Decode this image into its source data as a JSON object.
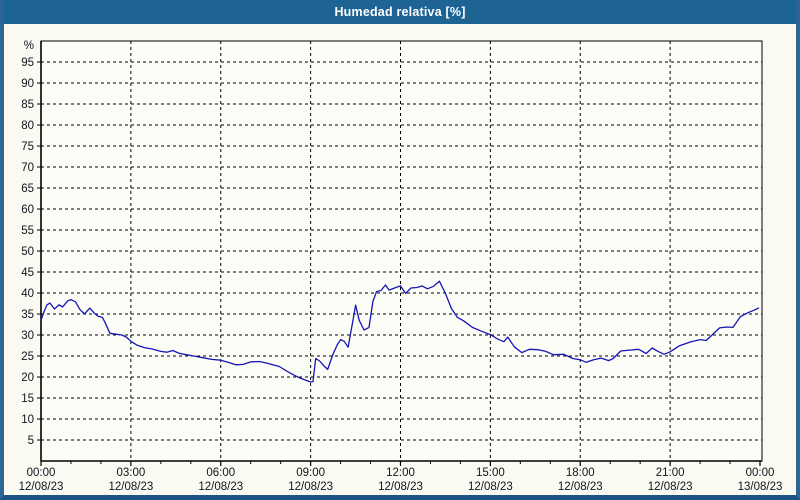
{
  "window": {
    "title": "Humedad relativa [%]"
  },
  "colors": {
    "titlebar_bg": "#1d6394",
    "titlebar_text": "#ffffff",
    "frame": "#2d6595",
    "content_bg": "#fafaf2",
    "plot_bg": "#fdfdf8",
    "grid": "#000000",
    "axis": "#000000",
    "tick_label": "#10141e",
    "line": "#1616b6"
  },
  "chart_data": {
    "type": "line",
    "title": "Humedad relativa [%]",
    "ylabel": "%",
    "ylim": [
      0,
      100
    ],
    "xlim_hours": [
      0,
      24
    ],
    "grid": true,
    "legend": "none",
    "y_tick_step": 5,
    "y_ticks": [
      5,
      10,
      15,
      20,
      25,
      30,
      35,
      40,
      45,
      50,
      55,
      60,
      65,
      70,
      75,
      80,
      85,
      90,
      95
    ],
    "x_ticks": [
      {
        "hour": 0,
        "time": "00:00",
        "date": "12/08/23"
      },
      {
        "hour": 3,
        "time": "03:00",
        "date": "12/08/23"
      },
      {
        "hour": 6,
        "time": "06:00",
        "date": "12/08/23"
      },
      {
        "hour": 9,
        "time": "09:00",
        "date": "12/08/23"
      },
      {
        "hour": 12,
        "time": "12:00",
        "date": "12/08/23"
      },
      {
        "hour": 15,
        "time": "15:00",
        "date": "12/08/23"
      },
      {
        "hour": 18,
        "time": "18:00",
        "date": "12/08/23"
      },
      {
        "hour": 21,
        "time": "21:00",
        "date": "12/08/23"
      },
      {
        "hour": 24,
        "time": "00:00",
        "date": "13/08/23"
      }
    ],
    "minor_x_tick_hours": 1,
    "series": [
      {
        "name": "Humedad relativa",
        "unit": "%",
        "points": [
          [
            0,
            33.5
          ],
          [
            0.1,
            35.5
          ],
          [
            0.2,
            37.2
          ],
          [
            0.3,
            37.6
          ],
          [
            0.45,
            36.2
          ],
          [
            0.6,
            37.2
          ],
          [
            0.72,
            36.7
          ],
          [
            0.9,
            38.2
          ],
          [
            1.0,
            38.4
          ],
          [
            1.15,
            37.9
          ],
          [
            1.3,
            36.1
          ],
          [
            1.45,
            35.0
          ],
          [
            1.63,
            36.4
          ],
          [
            1.78,
            35.2
          ],
          [
            1.9,
            34.5
          ],
          [
            2.05,
            34.2
          ],
          [
            2.15,
            32.8
          ],
          [
            2.3,
            30.4
          ],
          [
            2.5,
            30.2
          ],
          [
            2.7,
            30.0
          ],
          [
            2.85,
            29.5
          ],
          [
            3.0,
            28.5
          ],
          [
            3.2,
            27.6
          ],
          [
            3.45,
            27.0
          ],
          [
            3.7,
            26.7
          ],
          [
            4.0,
            26.1
          ],
          [
            4.2,
            25.9
          ],
          [
            4.4,
            26.3
          ],
          [
            4.6,
            25.7
          ],
          [
            4.85,
            25.3
          ],
          [
            5.1,
            25.0
          ],
          [
            5.4,
            24.6
          ],
          [
            5.7,
            24.2
          ],
          [
            6.0,
            24.0
          ],
          [
            6.3,
            23.4
          ],
          [
            6.5,
            22.9
          ],
          [
            6.75,
            23.0
          ],
          [
            7.0,
            23.6
          ],
          [
            7.3,
            23.7
          ],
          [
            7.6,
            23.2
          ],
          [
            7.95,
            22.5
          ],
          [
            8.3,
            21.0
          ],
          [
            8.6,
            19.9
          ],
          [
            8.85,
            19.2
          ],
          [
            9.0,
            18.8
          ],
          [
            9.08,
            18.9
          ],
          [
            9.17,
            24.4
          ],
          [
            9.3,
            23.8
          ],
          [
            9.45,
            22.6
          ],
          [
            9.57,
            21.8
          ],
          [
            9.75,
            25.5
          ],
          [
            9.9,
            27.8
          ],
          [
            10.0,
            28.9
          ],
          [
            10.12,
            28.5
          ],
          [
            10.25,
            27.1
          ],
          [
            10.4,
            33.0
          ],
          [
            10.5,
            37.1
          ],
          [
            10.62,
            33.5
          ],
          [
            10.78,
            31.2
          ],
          [
            10.95,
            31.8
          ],
          [
            11.08,
            38.0
          ],
          [
            11.2,
            40.3
          ],
          [
            11.35,
            40.6
          ],
          [
            11.5,
            41.9
          ],
          [
            11.62,
            40.7
          ],
          [
            11.8,
            41.2
          ],
          [
            12.0,
            41.7
          ],
          [
            12.17,
            39.9
          ],
          [
            12.35,
            41.2
          ],
          [
            12.55,
            41.3
          ],
          [
            12.72,
            41.7
          ],
          [
            12.9,
            41.0
          ],
          [
            13.1,
            41.6
          ],
          [
            13.3,
            42.8
          ],
          [
            13.5,
            39.9
          ],
          [
            13.7,
            36.3
          ],
          [
            13.9,
            34.2
          ],
          [
            14.1,
            33.4
          ],
          [
            14.4,
            31.8
          ],
          [
            14.7,
            30.9
          ],
          [
            15.0,
            30.1
          ],
          [
            15.25,
            29.0
          ],
          [
            15.45,
            28.4
          ],
          [
            15.58,
            29.5
          ],
          [
            15.8,
            27.2
          ],
          [
            16.05,
            25.8
          ],
          [
            16.3,
            26.6
          ],
          [
            16.6,
            26.5
          ],
          [
            16.85,
            26.1
          ],
          [
            17.1,
            25.3
          ],
          [
            17.45,
            25.4
          ],
          [
            17.75,
            24.4
          ],
          [
            18.0,
            24.1
          ],
          [
            18.2,
            23.5
          ],
          [
            18.45,
            24.1
          ],
          [
            18.7,
            24.5
          ],
          [
            18.95,
            23.9
          ],
          [
            19.1,
            24.4
          ],
          [
            19.35,
            26.2
          ],
          [
            19.65,
            26.4
          ],
          [
            19.95,
            26.6
          ],
          [
            20.2,
            25.6
          ],
          [
            20.4,
            26.9
          ],
          [
            20.6,
            26.1
          ],
          [
            20.8,
            25.4
          ],
          [
            21.0,
            26.0
          ],
          [
            21.3,
            27.4
          ],
          [
            21.7,
            28.4
          ],
          [
            22.0,
            28.9
          ],
          [
            22.2,
            28.7
          ],
          [
            22.4,
            30.0
          ],
          [
            22.65,
            31.7
          ],
          [
            22.9,
            31.9
          ],
          [
            23.1,
            31.8
          ],
          [
            23.35,
            34.4
          ],
          [
            23.6,
            35.3
          ],
          [
            23.8,
            35.9
          ],
          [
            23.95,
            36.4
          ]
        ]
      }
    ]
  }
}
